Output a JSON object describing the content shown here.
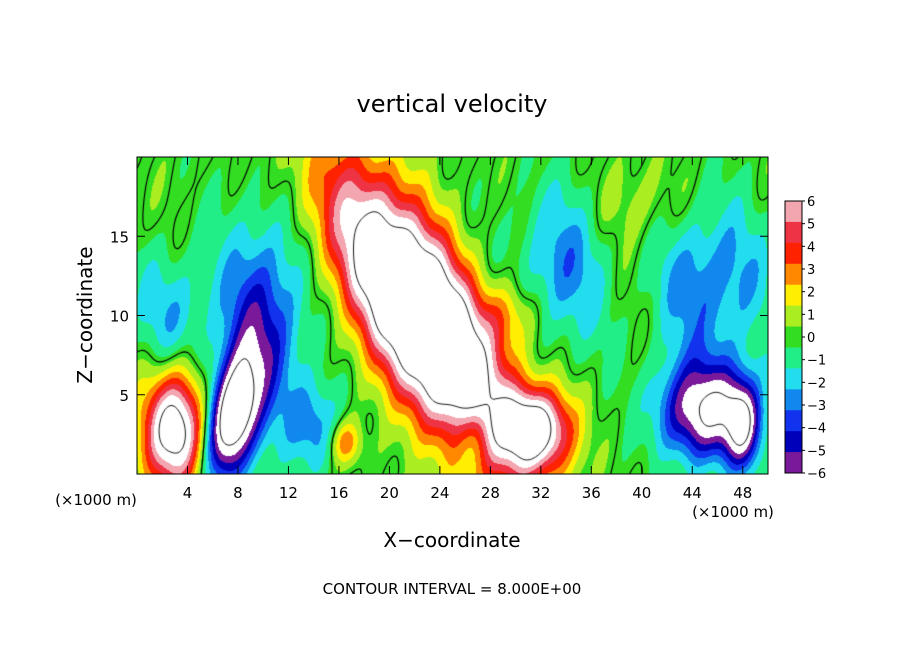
{
  "chart_data": {
    "type": "heatmap",
    "title": "vertical velocity",
    "xlabel": "X−coordinate",
    "ylabel": "Z−coordinate",
    "x_unit_label": "(×1000 m)",
    "y_unit_label": "(×1000 m)",
    "footer": "CONTOUR INTERVAL = 8.000E+00",
    "xlim": [
      0,
      50
    ],
    "ylim": [
      0,
      20
    ],
    "x_ticks": [
      4,
      8,
      12,
      16,
      20,
      24,
      28,
      32,
      36,
      40,
      44,
      48
    ],
    "x_tick_labels": [
      "4",
      "8",
      "12",
      "16",
      "20",
      "24",
      "28",
      "32",
      "36",
      "40",
      "44",
      "48"
    ],
    "y_ticks": [
      5,
      10,
      15
    ],
    "y_tick_labels": [
      "5",
      "10",
      "15"
    ],
    "colorbar": {
      "levels": [
        6,
        5,
        4,
        3,
        2,
        1,
        0,
        -1,
        -2,
        -3,
        -4,
        -5,
        -6
      ],
      "labels": [
        "6",
        "5",
        "4",
        "3",
        "2",
        "1",
        "0",
        "−1",
        "−2",
        "−3",
        "−4",
        "−5",
        "−6"
      ],
      "colors": [
        "#f4a6b0",
        "#ee3344",
        "#ff2200",
        "#ff8800",
        "#ffee00",
        "#aaee22",
        "#33dd22",
        "#22ee88",
        "#22ddee",
        "#1188ee",
        "#1133ee",
        "#0000bb",
        "#7a1a9a"
      ]
    },
    "features": [
      {
        "kind": "updraft",
        "x": 22.5,
        "z": 10.0,
        "amp": 15,
        "sx": 3.2,
        "sz": 5.8,
        "tilt": -0.58
      },
      {
        "kind": "updraft",
        "x": 3.0,
        "z": 2.8,
        "amp": 10,
        "sx": 1.7,
        "sz": 2.6,
        "tilt": 0
      },
      {
        "kind": "updraft",
        "x": 31.5,
        "z": 2.8,
        "amp": 9,
        "sx": 2.0,
        "sz": 1.8,
        "tilt": 0
      },
      {
        "kind": "downdraft",
        "x": 7.5,
        "z": 3.5,
        "amp": -10,
        "sx": 1.4,
        "sz": 2.8,
        "tilt": 0.2
      },
      {
        "kind": "downdraft",
        "x": 10.0,
        "z": 9.5,
        "amp": -5,
        "sx": 2.2,
        "sz": 4.5,
        "tilt": 0
      },
      {
        "kind": "downdraft",
        "x": 45.0,
        "z": 4.0,
        "amp": -8,
        "sx": 2.5,
        "sz": 2.2,
        "tilt": 0
      },
      {
        "kind": "downdraft",
        "x": 48.0,
        "z": 3.0,
        "amp": -6,
        "sx": 1.0,
        "sz": 2.0,
        "tilt": 0
      },
      {
        "kind": "downdraft",
        "x": 45.5,
        "z": 12.0,
        "amp": -3.5,
        "sx": 3.0,
        "sz": 3.5,
        "tilt": 0
      },
      {
        "kind": "downdraft",
        "x": 33.5,
        "z": 13.0,
        "amp": -3,
        "sx": 2.5,
        "sz": 3.5,
        "tilt": 0
      },
      {
        "kind": "downdraft",
        "x": 14.0,
        "z": 3.0,
        "amp": -3,
        "sx": 1.5,
        "sz": 2.0,
        "tilt": 0
      },
      {
        "kind": "downdraft",
        "x": 26.5,
        "z": 2.5,
        "amp": -3,
        "sx": 1.0,
        "sz": 1.5,
        "tilt": 0
      },
      {
        "kind": "downdraft",
        "x": 3.0,
        "z": 10.0,
        "amp": -2.5,
        "sx": 2.0,
        "sz": 3.0,
        "tilt": 0
      },
      {
        "kind": "updraft",
        "x": 16.5,
        "z": 2.0,
        "amp": 3.5,
        "sx": 0.9,
        "sz": 1.0,
        "tilt": 0
      },
      {
        "kind": "updraft",
        "x": 29.5,
        "z": 10.0,
        "amp": 2.5,
        "sx": 1.5,
        "sz": 1.5,
        "tilt": 0
      },
      {
        "kind": "updraft",
        "x": 40.0,
        "z": 17.0,
        "amp": 1.2,
        "sx": 2.5,
        "sz": 2.0,
        "tilt": 0
      }
    ]
  }
}
